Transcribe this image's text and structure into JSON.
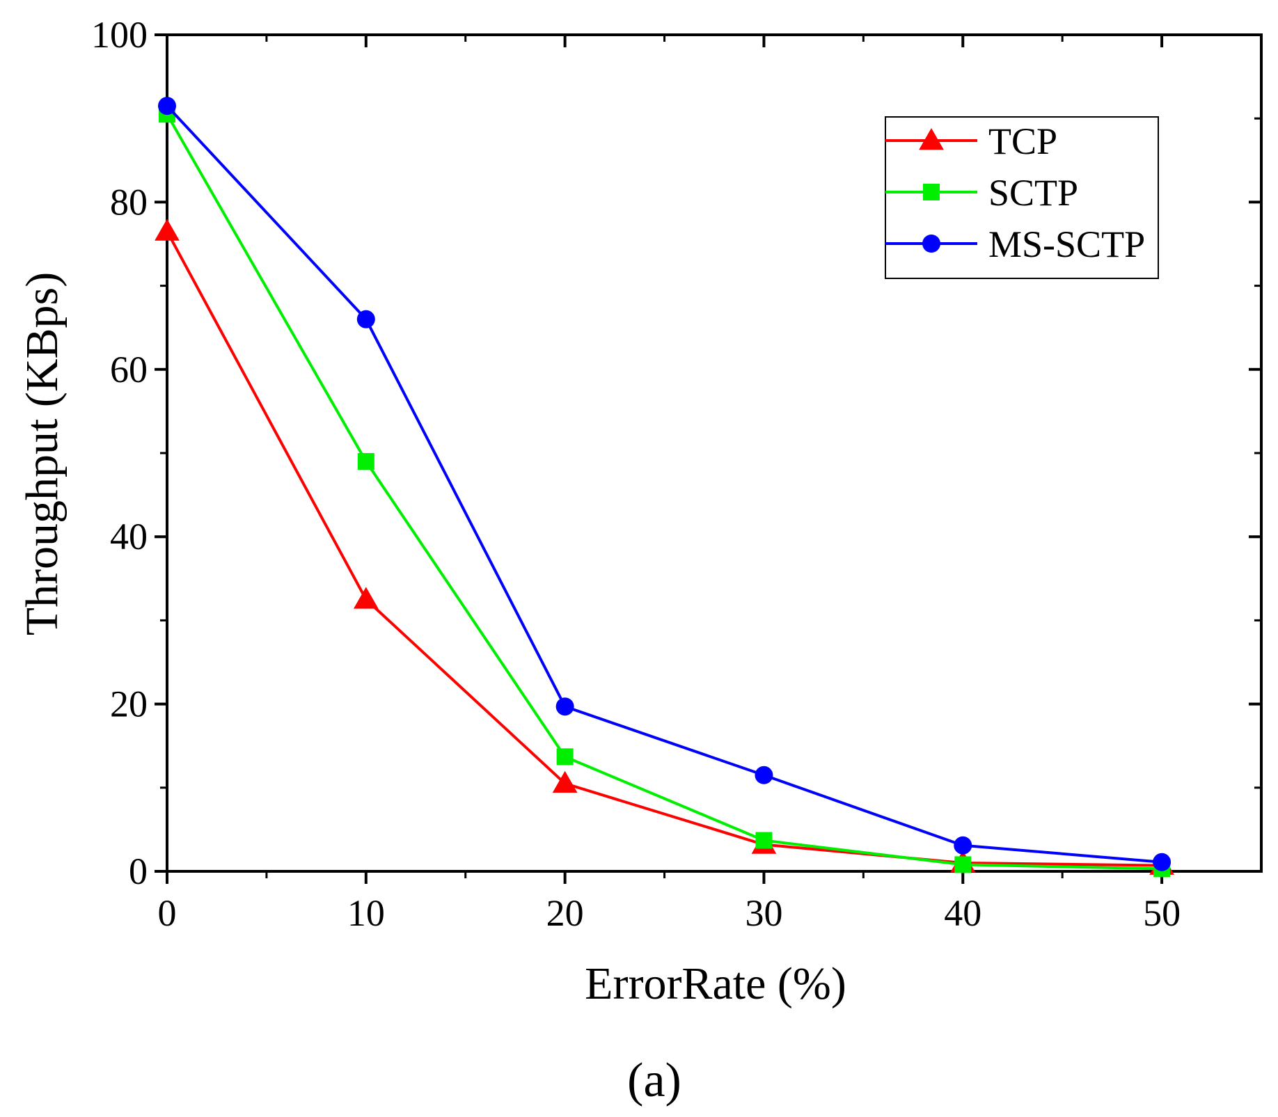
{
  "chart_data": {
    "type": "line",
    "xlabel": "ErrorRate (%)",
    "ylabel": "Throughput (KBps)",
    "caption": "(a)",
    "xlim": [
      0,
      55
    ],
    "ylim": [
      0,
      100
    ],
    "x_ticks": [
      0,
      10,
      20,
      30,
      40,
      50
    ],
    "y_ticks": [
      0,
      20,
      40,
      60,
      80,
      100
    ],
    "x_tick_labels": [
      "0",
      "10",
      "20",
      "30",
      "40",
      "50"
    ],
    "y_tick_labels": [
      "0",
      "20",
      "40",
      "60",
      "80",
      "100"
    ],
    "grid": false,
    "legend_position": "top-right",
    "x": [
      0,
      10,
      20,
      30,
      40,
      50
    ],
    "series": [
      {
        "name": "TCP",
        "color": "#ff0000",
        "marker": "triangle",
        "values": [
          76.5,
          32.5,
          10.5,
          3.2,
          1.0,
          0.7
        ]
      },
      {
        "name": "SCTP",
        "color": "#00ee00",
        "marker": "square",
        "values": [
          90.5,
          49.0,
          13.7,
          3.7,
          0.8,
          0.3
        ]
      },
      {
        "name": "MS-SCTP",
        "color": "#0000ff",
        "marker": "circle",
        "values": [
          91.5,
          66.0,
          19.7,
          11.5,
          3.1,
          1.1
        ]
      }
    ]
  }
}
